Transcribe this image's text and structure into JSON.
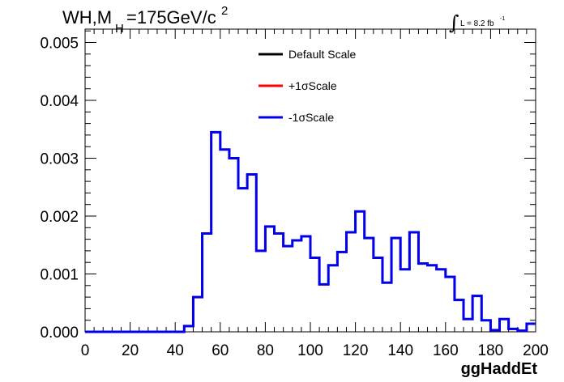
{
  "chart_data": {
    "type": "line",
    "title_main": "WH,M",
    "title_sub": "H",
    "title_rest": "=175GeV/c",
    "title_sup": "2",
    "lumi_label": "L = 8.2 fb",
    "lumi_sup": "-1",
    "xlabel": "ggHaddEt",
    "ylabel": "",
    "xlim": [
      0,
      200
    ],
    "ylim": [
      0,
      0.0052
    ],
    "x_ticks": [
      "0",
      "20",
      "40",
      "60",
      "80",
      "100",
      "120",
      "140",
      "160",
      "180",
      "200"
    ],
    "y_ticks": [
      "0.000",
      "0.001",
      "0.002",
      "0.003",
      "0.004",
      "0.005"
    ],
    "legend_position": "top-center",
    "bin_edges": [
      0,
      4,
      8,
      12,
      16,
      20,
      24,
      28,
      32,
      36,
      40,
      44,
      48,
      52,
      56,
      60,
      64,
      68,
      72,
      76,
      80,
      84,
      88,
      92,
      96,
      100,
      104,
      108,
      112,
      116,
      120,
      124,
      128,
      132,
      136,
      140,
      144,
      148,
      152,
      156,
      160,
      164,
      168,
      172,
      176,
      180,
      184,
      188,
      192,
      196,
      200
    ],
    "series": [
      {
        "name": "Default Scale",
        "color": "#000000",
        "values": [
          0,
          0,
          0,
          0,
          0,
          0,
          0,
          0,
          0,
          0,
          0,
          0.0001,
          0.0006,
          0.0017,
          0.00345,
          0.00315,
          0.003,
          0.00248,
          0.00272,
          0.0014,
          0.00182,
          0.0017,
          0.00148,
          0.00158,
          0.00165,
          0.00128,
          0.00082,
          0.00115,
          0.00138,
          0.00172,
          0.00208,
          0.00162,
          0.00128,
          0.00085,
          0.00162,
          0.00108,
          0.00172,
          0.00118,
          0.00115,
          0.00108,
          0.00095,
          0.00055,
          0.00022,
          0.00062,
          0.0002,
          3e-05,
          0.00022,
          5e-05,
          2e-05,
          0.00014
        ]
      },
      {
        "name": "+1σScale",
        "color": "#ff0000",
        "values": [
          0,
          0,
          0,
          0,
          0,
          0,
          0,
          0,
          0,
          0,
          0,
          0.0001,
          0.0006,
          0.0017,
          0.00345,
          0.00315,
          0.003,
          0.00248,
          0.00272,
          0.0014,
          0.00182,
          0.0017,
          0.00148,
          0.00158,
          0.00165,
          0.00128,
          0.00082,
          0.00115,
          0.00138,
          0.00172,
          0.00208,
          0.00162,
          0.00128,
          0.00085,
          0.00162,
          0.00108,
          0.00172,
          0.00118,
          0.00115,
          0.00108,
          0.00095,
          0.00055,
          0.00022,
          0.00062,
          0.0002,
          3e-05,
          0.00022,
          5e-05,
          2e-05,
          0.00014
        ]
      },
      {
        "name": "-1σScale",
        "color": "#0000ee",
        "values": [
          0,
          0,
          0,
          0,
          0,
          0,
          0,
          0,
          0,
          0,
          0,
          0.0001,
          0.0006,
          0.0017,
          0.00345,
          0.00315,
          0.003,
          0.00248,
          0.00272,
          0.0014,
          0.00182,
          0.0017,
          0.00148,
          0.00158,
          0.00165,
          0.00128,
          0.00082,
          0.00115,
          0.00138,
          0.00172,
          0.00208,
          0.00162,
          0.00128,
          0.00085,
          0.00162,
          0.00108,
          0.00172,
          0.00118,
          0.00115,
          0.00108,
          0.00095,
          0.00055,
          0.00022,
          0.00062,
          0.0002,
          3e-05,
          0.00022,
          5e-05,
          2e-05,
          0.00014
        ]
      }
    ]
  }
}
